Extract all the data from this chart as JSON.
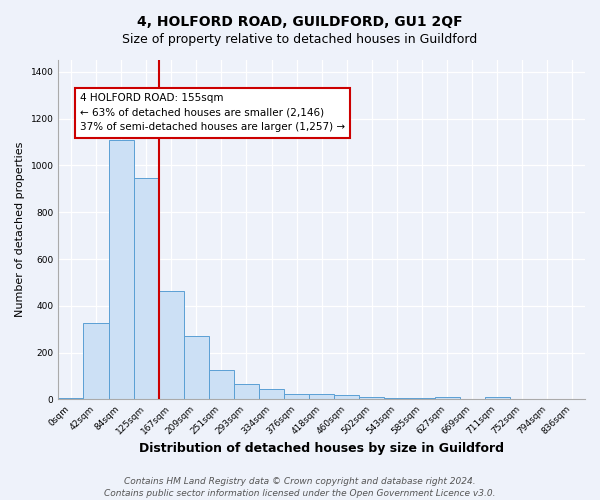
{
  "title": "4, HOLFORD ROAD, GUILDFORD, GU1 2QF",
  "subtitle": "Size of property relative to detached houses in Guildford",
  "xlabel": "Distribution of detached houses by size in Guildford",
  "ylabel": "Number of detached properties",
  "categories": [
    "0sqm",
    "42sqm",
    "84sqm",
    "125sqm",
    "167sqm",
    "209sqm",
    "251sqm",
    "293sqm",
    "334sqm",
    "376sqm",
    "418sqm",
    "460sqm",
    "502sqm",
    "543sqm",
    "585sqm",
    "627sqm",
    "669sqm",
    "711sqm",
    "752sqm",
    "794sqm",
    "836sqm"
  ],
  "values": [
    8,
    325,
    1110,
    945,
    465,
    270,
    125,
    65,
    43,
    22,
    25,
    18,
    12,
    8,
    5,
    10,
    0,
    12,
    0,
    0,
    0
  ],
  "bar_color": "#cce0f5",
  "bar_edge_color": "#5a9fd4",
  "vline_color": "#cc0000",
  "vline_index": 3.5,
  "annotation_text": "4 HOLFORD ROAD: 155sqm\n← 63% of detached houses are smaller (2,146)\n37% of semi-detached houses are larger (1,257) →",
  "annotation_box_color": "#ffffff",
  "annotation_box_edge_color": "#cc0000",
  "ylim": [
    0,
    1450
  ],
  "yticks": [
    0,
    200,
    400,
    600,
    800,
    1000,
    1200,
    1400
  ],
  "bg_color": "#eef2fa",
  "footer_line1": "Contains HM Land Registry data © Crown copyright and database right 2024.",
  "footer_line2": "Contains public sector information licensed under the Open Government Licence v3.0.",
  "title_fontsize": 10,
  "subtitle_fontsize": 9,
  "xlabel_fontsize": 9,
  "ylabel_fontsize": 8,
  "annotation_fontsize": 7.5,
  "tick_fontsize": 6.5,
  "footer_fontsize": 6.5
}
